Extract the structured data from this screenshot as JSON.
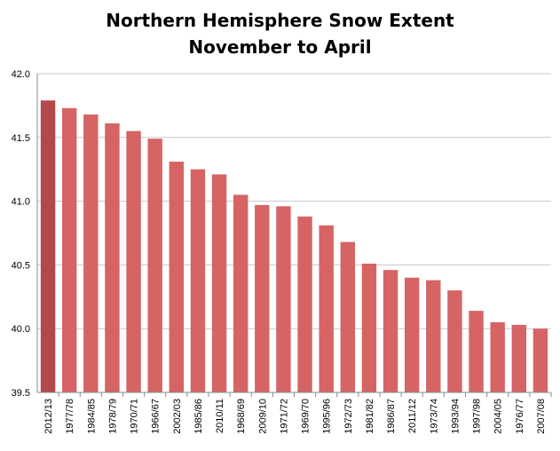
{
  "chart_data": {
    "type": "bar",
    "title": "Northern Hemisphere Snow Extent",
    "subtitle": "November to April",
    "xlabel": "",
    "ylabel": "",
    "ylim": [
      39.5,
      42.0
    ],
    "yticks": [
      "39.5",
      "40.0",
      "40.5",
      "41.0",
      "41.5",
      "42.0"
    ],
    "grid": true,
    "categories": [
      "2012/13",
      "1977/78",
      "1984/85",
      "1978/79",
      "1970/71",
      "1966/67",
      "2002/03",
      "1985/86",
      "2010/11",
      "1968/69",
      "2009/10",
      "1971/72",
      "1969/70",
      "1995/96",
      "1972/73",
      "1981/82",
      "1986/87",
      "2011/12",
      "1973/74",
      "1993/94",
      "1997/98",
      "2004/05",
      "1976/77",
      "2007/08"
    ],
    "values": [
      41.79,
      41.73,
      41.68,
      41.61,
      41.55,
      41.49,
      41.31,
      41.25,
      41.21,
      41.05,
      40.97,
      40.96,
      40.88,
      40.81,
      40.68,
      40.51,
      40.46,
      40.4,
      40.38,
      40.3,
      40.14,
      40.05,
      40.03,
      40.0
    ],
    "colors": {
      "highlight": "#b3484a",
      "bar": "#d66464",
      "grid": "#c8c8c8",
      "axis": "#888888"
    },
    "highlight_index": 0
  }
}
